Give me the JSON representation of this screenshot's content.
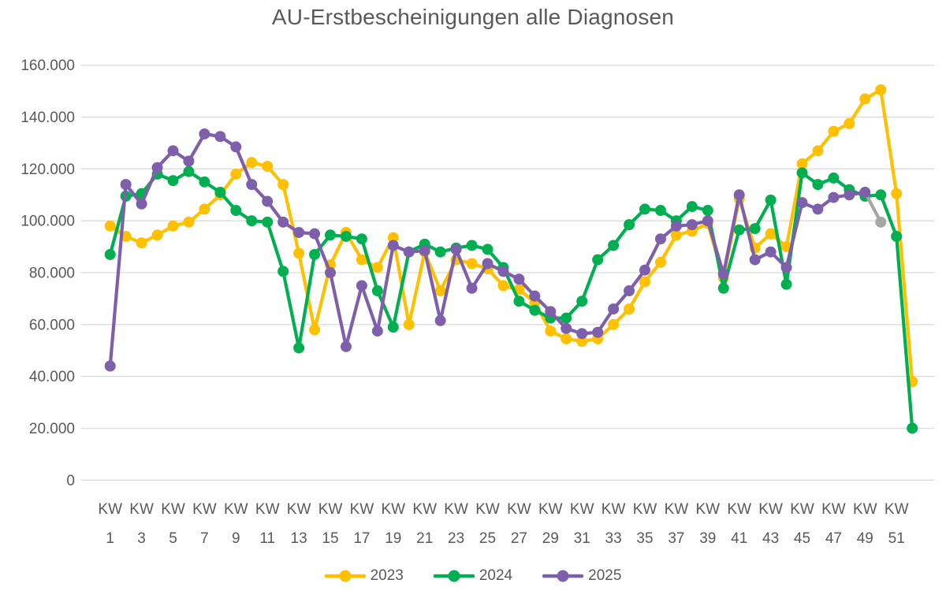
{
  "title": "AU-Erstbescheinigungen alle Diagnosen",
  "colors": {
    "title_text": "#595959",
    "axis_text": "#595959",
    "gridline": "#d9d9d9",
    "background": "#ffffff",
    "series_2023": "#ffc000",
    "series_2024": "#00b050",
    "series_2025": "#7d5fac",
    "provisional_gray": "#a6a6a6"
  },
  "chart_data": {
    "type": "line",
    "title": "AU-Erstbescheinigungen alle Diagnosen",
    "xlabel": "",
    "ylabel": "",
    "ylim": [
      0,
      160000
    ],
    "y_tick_step": 20000,
    "y_tick_labels": [
      "0",
      "20.000",
      "40.000",
      "60.000",
      "80.000",
      "100.000",
      "120.000",
      "140.000",
      "160.000"
    ],
    "x_tick_prefix": "KW",
    "x_ticks_shown": [
      1,
      3,
      5,
      7,
      9,
      11,
      13,
      15,
      17,
      19,
      21,
      23,
      25,
      27,
      29,
      31,
      33,
      35,
      37,
      39,
      41,
      43,
      45,
      47,
      49,
      51
    ],
    "grid": true,
    "legend_position": "bottom",
    "marker": "circle",
    "series": [
      {
        "name": "2023",
        "color": "#ffc000",
        "start_week": 1,
        "values": [
          98000,
          94000,
          91500,
          94500,
          98000,
          99500,
          104500,
          110000,
          118000,
          122500,
          121000,
          114000,
          87500,
          58000,
          83000,
          95500,
          85000,
          82000,
          93500,
          60000,
          88000,
          73000,
          85000,
          83500,
          81500,
          75000,
          73500,
          68500,
          57500,
          54500,
          53500,
          54500,
          60000,
          66000,
          76500,
          84000,
          94500,
          96000,
          99000,
          78000,
          108500,
          89500,
          95000,
          90000,
          122000,
          127000,
          134500,
          137500,
          147000,
          150500,
          110500,
          38000
        ]
      },
      {
        "name": "2024",
        "color": "#00b050",
        "start_week": 1,
        "values": [
          87000,
          109500,
          110500,
          118000,
          115500,
          119000,
          115000,
          111000,
          104000,
          100000,
          99500,
          80500,
          51000,
          87000,
          94500,
          94000,
          93000,
          73000,
          59000,
          88000,
          91000,
          88000,
          89500,
          90500,
          89000,
          82000,
          69000,
          65500,
          62500,
          62500,
          69000,
          85000,
          90500,
          98500,
          104500,
          104000,
          100000,
          105500,
          104000,
          74000,
          96500,
          97000,
          108000,
          75500,
          118500,
          114000,
          116500,
          112000,
          109500,
          110000,
          94000,
          20000
        ]
      },
      {
        "name": "2025",
        "color": "#7d5fac",
        "start_week": 1,
        "provisional_last_point": true,
        "provisional_color": "#a6a6a6",
        "values": [
          44000,
          114000,
          106500,
          120500,
          127000,
          123000,
          133500,
          132500,
          128500,
          114000,
          107500,
          99500,
          95500,
          95000,
          80000,
          51500,
          75000,
          57500,
          90500,
          88000,
          88500,
          61500,
          89000,
          74000,
          83500,
          80500,
          77500,
          71000,
          65000,
          58500,
          56500,
          57000,
          66000,
          73000,
          81000,
          93000,
          98000,
          98500,
          100000,
          79500,
          110000,
          85000,
          88000,
          82000,
          107000,
          104500,
          109000,
          110000,
          111000,
          99500
        ]
      }
    ]
  }
}
